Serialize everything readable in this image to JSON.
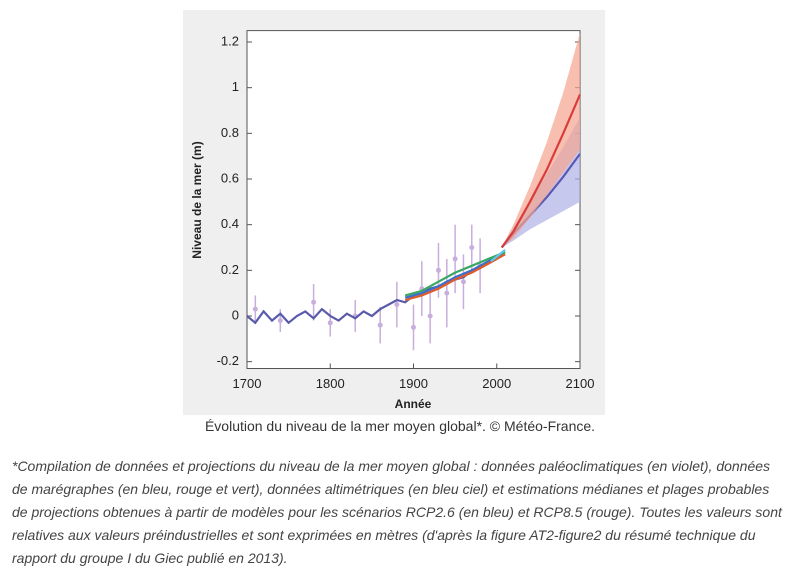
{
  "chart_data": {
    "type": "line",
    "xlabel": "Année",
    "ylabel": "Niveau de la mer (m)",
    "xlim": [
      1700,
      2100
    ],
    "xticks": [
      1700,
      1800,
      1900,
      2000,
      2100
    ],
    "ylim": [
      -0.23,
      1.25
    ],
    "yticks": [
      -0.2,
      0,
      0.2,
      0.4,
      0.6,
      0.8,
      1,
      1.2
    ],
    "series": [
      {
        "color": "#c8aedd",
        "x": [
          1710,
          1740,
          1780,
          1800,
          1830,
          1860,
          1880,
          1900,
          1910,
          1920,
          1930,
          1940,
          1950,
          1960,
          1970,
          1980
        ],
        "values": [
          0.03,
          -0.02,
          0.06,
          -0.03,
          0,
          -0.04,
          0.05,
          -0.05,
          0.12,
          0,
          0.2,
          0.1,
          0.25,
          0.15,
          0.3,
          0.22
        ],
        "errors": [
          0.06,
          0.05,
          0.08,
          0.06,
          0.07,
          0.08,
          0.1,
          0.1,
          0.12,
          0.12,
          0.12,
          0.15,
          0.15,
          0.12,
          0.1,
          0.12
        ]
      },
      {
        "color": "#5a5aaa",
        "x": [
          1700,
          1710,
          1720,
          1730,
          1740,
          1750,
          1760,
          1770,
          1780,
          1790,
          1800,
          1810,
          1820,
          1830,
          1840,
          1850,
          1860,
          1870,
          1880,
          1890,
          1900,
          1910,
          1920,
          1930,
          1940,
          1950,
          1960,
          1970,
          1980,
          1990,
          2000
        ],
        "values": [
          0,
          -0.03,
          0.02,
          -0.02,
          0.01,
          -0.03,
          0,
          0.02,
          -0.01,
          0.03,
          0,
          -0.02,
          0.01,
          -0.01,
          0.02,
          0,
          0.03,
          0.05,
          0.07,
          0.06,
          0.09,
          0.1,
          0.12,
          0.13,
          0.15,
          0.16,
          0.17,
          0.2,
          0.21,
          0.23,
          0.25
        ]
      },
      {
        "color": "#3a6fd0",
        "x": [
          1890,
          1910,
          1930,
          1950,
          1970,
          1990,
          2010
        ],
        "values": [
          0.08,
          0.1,
          0.13,
          0.17,
          0.2,
          0.24,
          0.28
        ]
      },
      {
        "color": "#e05a2a",
        "x": [
          1890,
          1910,
          1930,
          1950,
          1970,
          1990,
          2010
        ],
        "values": [
          0.07,
          0.09,
          0.12,
          0.16,
          0.19,
          0.23,
          0.27
        ]
      },
      {
        "color": "#3aa860",
        "x": [
          1890,
          1910,
          1930,
          1950,
          1970,
          1990,
          2010
        ],
        "values": [
          0.09,
          0.11,
          0.15,
          0.19,
          0.22,
          0.25,
          0.28
        ]
      },
      {
        "color": "#5ec6e8",
        "x": [
          1993,
          2000,
          2010
        ],
        "values": [
          0.24,
          0.26,
          0.29
        ]
      },
      {
        "color": "#5a5ab4",
        "band_color": "#aeb0e6",
        "x": [
          2006,
          2020,
          2040,
          2060,
          2080,
          2100
        ],
        "values": [
          0.3,
          0.36,
          0.44,
          0.52,
          0.61,
          0.71
        ],
        "lower": [
          0.3,
          0.33,
          0.38,
          0.42,
          0.46,
          0.5
        ],
        "upper": [
          0.3,
          0.39,
          0.5,
          0.62,
          0.74,
          0.87
        ]
      },
      {
        "color": "#d93c3c",
        "band_color": "#f5a48e",
        "x": [
          2006,
          2020,
          2040,
          2060,
          2080,
          2100
        ],
        "values": [
          0.3,
          0.37,
          0.5,
          0.64,
          0.8,
          0.97
        ],
        "lower": [
          0.3,
          0.34,
          0.43,
          0.53,
          0.63,
          0.73
        ],
        "upper": [
          0.3,
          0.4,
          0.57,
          0.76,
          0.98,
          1.24
        ]
      }
    ]
  },
  "caption": "Évolution du niveau de la mer moyen global*. © Météo-France.",
  "footnote": "*Compilation de données et projections du niveau de la mer moyen global : données paléoclimatiques (en violet), données de marégraphes (en bleu, rouge et vert), données altimétriques (en bleu ciel) et estimations médianes et plages probables de projections obtenues à partir de modèles pour les scénarios RCP2.6 (en bleu) et RCP8.5 (rouge). Toutes les valeurs sont relatives aux valeurs préindustrielles et sont exprimées en mètres (d'après la figure AT2-figure2 du résumé technique du rapport du groupe I du Giec publié en 2013)."
}
